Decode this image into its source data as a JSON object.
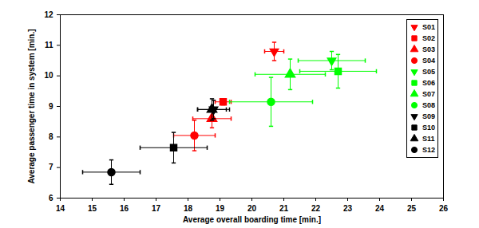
{
  "chart_data": {
    "type": "scatter",
    "x_label": "Average overall boarding time [min.]",
    "y_label": "Average passenger time in system [min.]",
    "xlim": [
      14,
      26
    ],
    "xticks": [
      14,
      15,
      16,
      17,
      18,
      19,
      20,
      21,
      22,
      23,
      24,
      25,
      26
    ],
    "ylim": [
      6,
      12
    ],
    "yticks": [
      6,
      7,
      8,
      9,
      10,
      11,
      12
    ],
    "grid": false,
    "legend": "right",
    "series": [
      {
        "name": "S01",
        "color": "#ff0000",
        "marker": "triangle-down",
        "x": [
          20.7
        ],
        "values": [
          10.8
        ],
        "x_error": [
          0.3
        ],
        "y_error": [
          0.3
        ]
      },
      {
        "name": "S02",
        "color": "#ff0000",
        "marker": "square",
        "x": [
          19.1
        ],
        "values": [
          9.15
        ],
        "x_error": [
          0.25
        ],
        "y_error": [
          0.1
        ]
      },
      {
        "name": "S03",
        "color": "#ff0000",
        "marker": "triangle-up",
        "x": [
          18.75
        ],
        "values": [
          8.6
        ],
        "x_error": [
          0.6
        ],
        "y_error": [
          0.3
        ]
      },
      {
        "name": "S04",
        "color": "#ff0000",
        "marker": "circle",
        "x": [
          18.2
        ],
        "values": [
          8.05
        ],
        "x_error": [
          0.65
        ],
        "y_error": [
          0.5
        ]
      },
      {
        "name": "S05",
        "color": "#00ff00",
        "marker": "triangle-down",
        "x": [
          22.5
        ],
        "values": [
          10.5
        ],
        "x_error": [
          1.05
        ],
        "y_error": [
          0.3
        ]
      },
      {
        "name": "S06",
        "color": "#00ff00",
        "marker": "square",
        "x": [
          22.7
        ],
        "values": [
          10.15
        ],
        "x_error": [
          1.2
        ],
        "y_error": [
          0.55
        ]
      },
      {
        "name": "S07",
        "color": "#00ff00",
        "marker": "triangle-up",
        "x": [
          21.2
        ],
        "values": [
          10.05
        ],
        "x_error": [
          1.1
        ],
        "y_error": [
          0.5
        ]
      },
      {
        "name": "S08",
        "color": "#00ff00",
        "marker": "circle",
        "x": [
          20.6
        ],
        "values": [
          9.15
        ],
        "x_error": [
          1.3
        ],
        "y_error": [
          0.8
        ]
      },
      {
        "name": "S09",
        "color": "#000000",
        "marker": "triangle-down",
        "x": [
          18.8
        ],
        "values": [
          8.9
        ],
        "x_error": [
          0.5
        ],
        "y_error": [
          0.3
        ]
      },
      {
        "name": "S10",
        "color": "#000000",
        "marker": "square",
        "x": [
          17.55
        ],
        "values": [
          7.65
        ],
        "x_error": [
          1.05
        ],
        "y_error": [
          0.5
        ]
      },
      {
        "name": "S11",
        "color": "#000000",
        "marker": "triangle-up",
        "x": [
          18.75
        ],
        "values": [
          8.9
        ],
        "x_error": [
          0.45
        ],
        "y_error": [
          0.35
        ]
      },
      {
        "name": "S12",
        "color": "#000000",
        "marker": "circle",
        "x": [
          15.6
        ],
        "values": [
          6.85
        ],
        "x_error": [
          0.9
        ],
        "y_error": [
          0.4
        ]
      }
    ]
  }
}
